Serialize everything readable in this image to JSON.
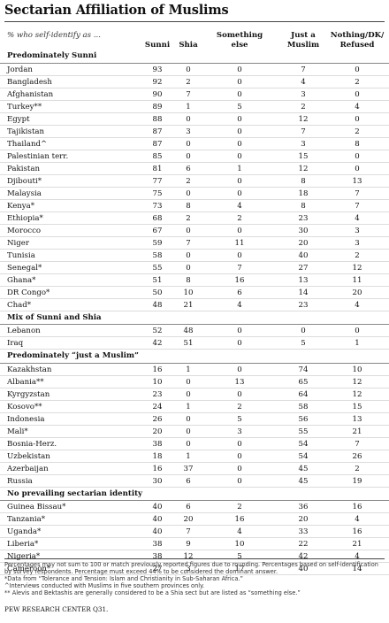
{
  "title": "Sectarian Affiliation of Muslims",
  "subtitle": "% who self-identify as ...",
  "chart_data": {
    "type": "table",
    "columns": [
      "Sunni",
      "Shia",
      "Something else",
      "Just a Muslim",
      "Nothing/DK/ Refused"
    ],
    "column_display": [
      [
        "Sunni"
      ],
      [
        "Shia"
      ],
      [
        "Something",
        "else"
      ],
      [
        "Just a",
        "Muslim"
      ],
      [
        "Nothing/DK/",
        "Refused"
      ]
    ],
    "groups": [
      {
        "name": "Predominately Sunni",
        "rows": [
          {
            "country": "Jordan",
            "values": [
              "93",
              "0",
              "0",
              "7",
              "0"
            ]
          },
          {
            "country": "Bangladesh",
            "values": [
              "92",
              "2",
              "0",
              "4",
              "2"
            ]
          },
          {
            "country": "Afghanistan",
            "values": [
              "90",
              "7",
              "0",
              "3",
              "0"
            ]
          },
          {
            "country": "Turkey**",
            "values": [
              "89",
              "1",
              "5",
              "2",
              "4"
            ]
          },
          {
            "country": "Egypt",
            "values": [
              "88",
              "0",
              "0",
              "12",
              "0"
            ]
          },
          {
            "country": "Tajikistan",
            "values": [
              "87",
              "3",
              "0",
              "7",
              "2"
            ]
          },
          {
            "country": "Thailand^",
            "values": [
              "87",
              "0",
              "0",
              "3",
              "8"
            ]
          },
          {
            "country": "Palestinian terr.",
            "values": [
              "85",
              "0",
              "0",
              "15",
              "0"
            ]
          },
          {
            "country": "Pakistan",
            "values": [
              "81",
              "6",
              "1",
              "12",
              "0"
            ]
          },
          {
            "country": "Djibouti*",
            "values": [
              "77",
              "2",
              "0",
              "8",
              "13"
            ]
          },
          {
            "country": "Malaysia",
            "values": [
              "75",
              "0",
              "0",
              "18",
              "7"
            ]
          },
          {
            "country": "Kenya*",
            "values": [
              "73",
              "8",
              "4",
              "8",
              "7"
            ]
          },
          {
            "country": "Ethiopia*",
            "values": [
              "68",
              "2",
              "2",
              "23",
              "4"
            ]
          },
          {
            "country": "Morocco",
            "values": [
              "67",
              "0",
              "0",
              "30",
              "3"
            ]
          },
          {
            "country": "Niger",
            "values": [
              "59",
              "7",
              "11",
              "20",
              "3"
            ]
          },
          {
            "country": "Tunisia",
            "values": [
              "58",
              "0",
              "0",
              "40",
              "2"
            ]
          },
          {
            "country": "Senegal*",
            "values": [
              "55",
              "0",
              "7",
              "27",
              "12"
            ]
          },
          {
            "country": "Ghana*",
            "values": [
              "51",
              "8",
              "16",
              "13",
              "11"
            ]
          },
          {
            "country": "DR Congo*",
            "values": [
              "50",
              "10",
              "6",
              "14",
              "20"
            ]
          },
          {
            "country": "Chad*",
            "values": [
              "48",
              "21",
              "4",
              "23",
              "4"
            ]
          }
        ]
      },
      {
        "name": "Mix of Sunni and Shia",
        "rows": [
          {
            "country": "Lebanon",
            "values": [
              "52",
              "48",
              "0",
              "0",
              "0"
            ]
          },
          {
            "country": "Iraq",
            "values": [
              "42",
              "51",
              "0",
              "5",
              "1"
            ]
          }
        ]
      },
      {
        "name": "Predominately “just a Muslim”",
        "rows": [
          {
            "country": "Kazakhstan",
            "values": [
              "16",
              "1",
              "0",
              "74",
              "10"
            ]
          },
          {
            "country": "Albania**",
            "values": [
              "10",
              "0",
              "13",
              "65",
              "12"
            ]
          },
          {
            "country": "Kyrgyzstan",
            "values": [
              "23",
              "0",
              "0",
              "64",
              "12"
            ]
          },
          {
            "country": "Kosovo**",
            "values": [
              "24",
              "1",
              "2",
              "58",
              "15"
            ]
          },
          {
            "country": "Indonesia",
            "values": [
              "26",
              "0",
              "5",
              "56",
              "13"
            ]
          },
          {
            "country": "Mali*",
            "values": [
              "20",
              "0",
              "3",
              "55",
              "21"
            ]
          },
          {
            "country": "Bosnia-Herz.",
            "values": [
              "38",
              "0",
              "0",
              "54",
              "7"
            ]
          },
          {
            "country": "Uzbekistan",
            "values": [
              "18",
              "1",
              "0",
              "54",
              "26"
            ]
          },
          {
            "country": "Azerbaijan",
            "values": [
              "16",
              "37",
              "0",
              "45",
              "2"
            ]
          },
          {
            "country": "Russia",
            "values": [
              "30",
              "6",
              "0",
              "45",
              "19"
            ]
          }
        ]
      },
      {
        "name": "No prevailing sectarian identity",
        "rows": [
          {
            "country": "Guinea Bissau*",
            "values": [
              "40",
              "6",
              "2",
              "36",
              "16"
            ]
          },
          {
            "country": "Tanzania*",
            "values": [
              "40",
              "20",
              "16",
              "20",
              "4"
            ]
          },
          {
            "country": "Uganda*",
            "values": [
              "40",
              "7",
              "4",
              "33",
              "16"
            ]
          },
          {
            "country": "Liberia*",
            "values": [
              "38",
              "9",
              "10",
              "22",
              "21"
            ]
          },
          {
            "country": "Nigeria*",
            "values": [
              "38",
              "12",
              "5",
              "42",
              "4"
            ]
          },
          {
            "country": "Cameroon*",
            "values": [
              "27",
              "3",
              "17",
              "40",
              "14"
            ]
          }
        ]
      }
    ]
  },
  "notes": [
    "Percentages may not sum to 100 or match previously reported figures due to rounding. Percentages based on self-identification by survey respondents. Percentage must exceed 44% to be considered the dominant answer.",
    "*Data from “Tolerance and Tension: Islam and Christianity in Sub-Saharan Africa.”",
    "^Interviews conducted with Muslims in five southern provinces only.",
    "** Alevis and Bektashis are generally considered to be a Shia sect but are listed as “something else.”"
  ],
  "source": "PEW RESEARCH CENTER Q31."
}
